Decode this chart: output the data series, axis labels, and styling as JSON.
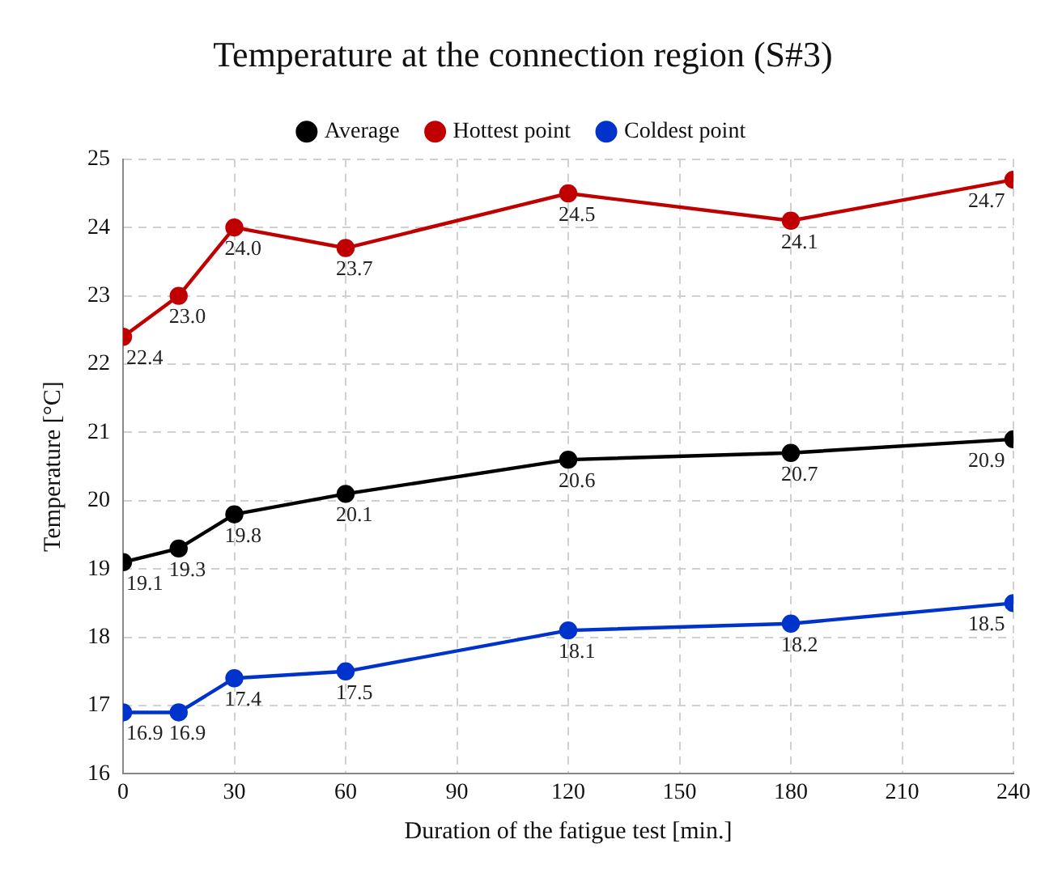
{
  "chart_data": {
    "type": "line",
    "title": "Temperature at the connection region (S#3)",
    "xlabel": "Duration of the fatigue test [min.]",
    "ylabel": "Temperature [°C]",
    "x": [
      0,
      15,
      30,
      60,
      120,
      180,
      240
    ],
    "series": [
      {
        "name": "Average",
        "color": "#000000",
        "values": [
          19.1,
          19.3,
          19.8,
          20.1,
          20.6,
          20.7,
          20.9
        ],
        "value_labels": [
          "19.1",
          "19.3",
          "19.8",
          "20.1",
          "20.6",
          "20.7",
          "20.9"
        ]
      },
      {
        "name": "Hottest point",
        "color": "#c00000",
        "values": [
          22.4,
          23.0,
          24.0,
          23.7,
          24.5,
          24.1,
          24.7
        ],
        "value_labels": [
          "22.4",
          "23.0",
          "24.0",
          "23.7",
          "24.5",
          "24.1",
          "24.7"
        ]
      },
      {
        "name": "Coldest point",
        "color": "#0033cc",
        "values": [
          16.9,
          16.9,
          17.4,
          17.5,
          18.1,
          18.2,
          18.5
        ],
        "value_labels": [
          "16.9",
          "16.9",
          "17.4",
          "17.5",
          "18.1",
          "18.2",
          "18.5"
        ]
      }
    ],
    "xlim": [
      0,
      240
    ],
    "xticks": [
      0,
      30,
      60,
      90,
      120,
      150,
      180,
      210,
      240
    ],
    "ylim": [
      16,
      25
    ],
    "yticks": [
      16,
      17,
      18,
      19,
      20,
      21,
      22,
      23,
      24,
      25
    ],
    "grid": true,
    "legend": "top",
    "marker": "circle",
    "line_style": "solid"
  }
}
